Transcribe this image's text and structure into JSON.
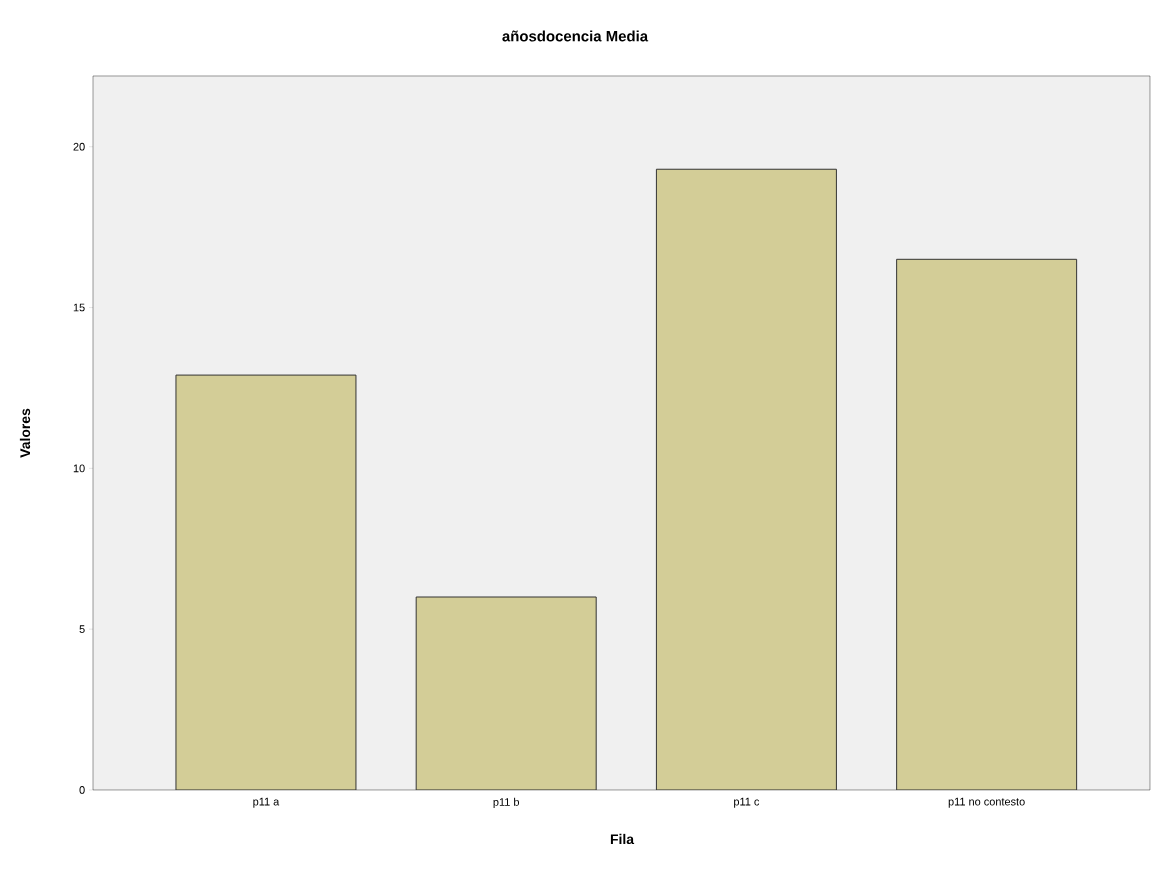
{
  "chart_data": {
    "type": "bar",
    "title": "añosdocencia Media",
    "xlabel": "Fila",
    "ylabel": "Valores",
    "categories": [
      "p11 a",
      "p11 b",
      "p11 c",
      "p11 no contesto"
    ],
    "values": [
      12.9,
      6.0,
      19.3,
      16.5
    ],
    "color": "#d3cd97",
    "ylim": [
      0,
      22.2
    ],
    "yticks": [
      0,
      5,
      10,
      15,
      20
    ],
    "grid": false
  }
}
